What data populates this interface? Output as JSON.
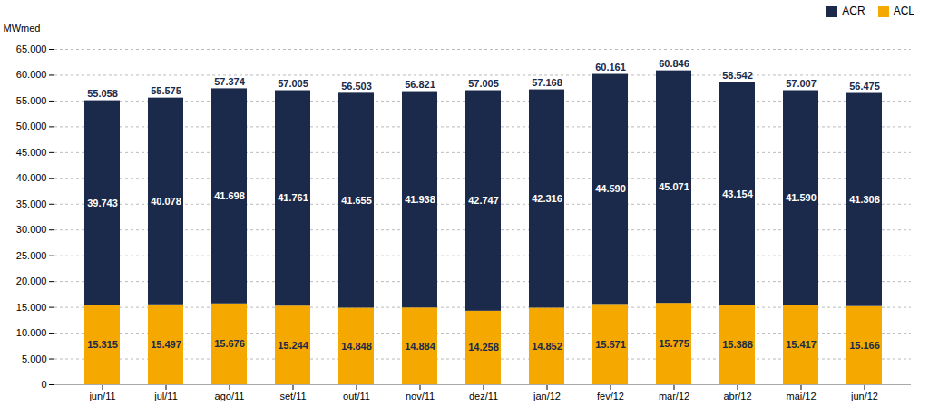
{
  "chart_data": {
    "type": "bar",
    "stacked": true,
    "data_labels": true,
    "grid": true,
    "legend": "upper right",
    "ylabel": "MWmed",
    "categories": [
      "jun/11",
      "jul/11",
      "ago/11",
      "set/11",
      "out/11",
      "nov/11",
      "dez/11",
      "jan/12",
      "fev/12",
      "mar/12",
      "abr/12",
      "mai/12",
      "jun/12"
    ],
    "series": [
      {
        "name": "ACL",
        "color": "#F5A800",
        "values": [
          15315,
          15497,
          15676,
          15244,
          14848,
          14884,
          14258,
          14852,
          15571,
          15775,
          15388,
          15417,
          15166
        ],
        "value_labels": [
          "15.315",
          "15.497",
          "15.676",
          "15.244",
          "14.848",
          "14.884",
          "14.258",
          "14.852",
          "15.571",
          "15.775",
          "15.388",
          "15.417",
          "15.166"
        ]
      },
      {
        "name": "ACR",
        "color": "#1B2A4A",
        "values": [
          39743,
          40078,
          41698,
          41761,
          41655,
          41938,
          42747,
          42316,
          44590,
          45071,
          43154,
          41590,
          41308
        ],
        "value_labels": [
          "39.743",
          "40.078",
          "41.698",
          "41.761",
          "41.655",
          "41.938",
          "42.747",
          "42.316",
          "44.590",
          "45.071",
          "43.154",
          "41.590",
          "41.308"
        ]
      }
    ],
    "totals": {
      "values": [
        55058,
        55575,
        57374,
        57005,
        56503,
        56821,
        57005,
        57168,
        60161,
        60846,
        58542,
        57007,
        56475
      ],
      "value_labels": [
        "55.058",
        "55.575",
        "57.374",
        "57.005",
        "56.503",
        "56.821",
        "57.005",
        "57.168",
        "60.161",
        "60.846",
        "58.542",
        "57.007",
        "56.475"
      ]
    },
    "ylim": [
      0,
      65000
    ],
    "yticks": [
      0,
      {
        "value": 5000,
        "label": "5.000"
      },
      {
        "value": 10000,
        "label": "10.000"
      },
      {
        "value": 15000,
        "label": "15.000"
      },
      {
        "value": 20000,
        "label": "20.000"
      },
      {
        "value": 25000,
        "label": "25.000"
      },
      {
        "value": 30000,
        "label": "30.000"
      },
      {
        "value": 35000,
        "label": "35.000"
      },
      {
        "value": 40000,
        "label": "40.000"
      },
      {
        "value": 45000,
        "label": "45.000"
      },
      {
        "value": 50000,
        "label": "50.000"
      },
      {
        "value": 55000,
        "label": "55.000"
      },
      {
        "value": 60000,
        "label": "60.000"
      },
      {
        "value": 65000,
        "label": "65.000"
      }
    ]
  }
}
